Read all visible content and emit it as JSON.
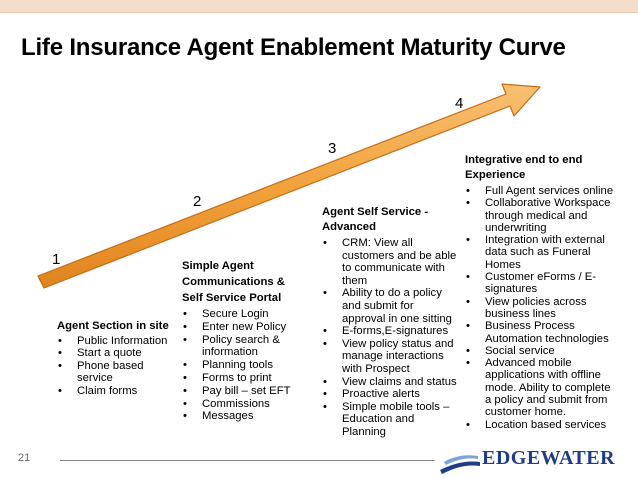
{
  "title": "Life Insurance Agent Enablement Maturity Curve",
  "colors": {
    "arrow_fill": "#f2a23c",
    "arrow_stroke": "#c86a16",
    "logo": "#1f3c88",
    "topbar": "#f4dccb"
  },
  "steps": [
    {
      "number": "1",
      "heading": "Agent Section in site",
      "items": [
        "Public Information",
        "Start a quote",
        "Phone based service",
        "Claim forms"
      ]
    },
    {
      "number": "2",
      "heading": "Simple Agent Communications & Self Service Portal",
      "items": [
        "Secure Login",
        "Enter new Policy",
        "Policy search & information",
        "Planning tools",
        "Forms to print",
        "Pay bill – set EFT",
        "Commissions",
        "Messages"
      ]
    },
    {
      "number": "3",
      "heading": "Agent Self Service - Advanced",
      "items": [
        "CRM: View all customers and be able to communicate with them",
        "Ability to do a policy and submit for approval in one sitting",
        "E-forms,E-signatures",
        "View policy status and manage interactions with Prospect",
        "View claims and status",
        "Proactive alerts",
        "Simple mobile tools – Education and Planning"
      ]
    },
    {
      "number": "4",
      "heading": "Integrative end to end Experience",
      "items": [
        "Full Agent services online",
        "Collaborative Workspace through medical and underwriting",
        "Integration with external data such as Funeral Homes",
        "Customer eForms / E-signatures",
        "View policies across business lines",
        "Business Process Automation technologies",
        "Social service",
        "Advanced mobile applications with offline mode. Ability to complete a policy and submit from customer home.",
        "Location based services"
      ]
    }
  ],
  "footer": {
    "page_number": "21",
    "logo_text": "EDGEWATER"
  }
}
